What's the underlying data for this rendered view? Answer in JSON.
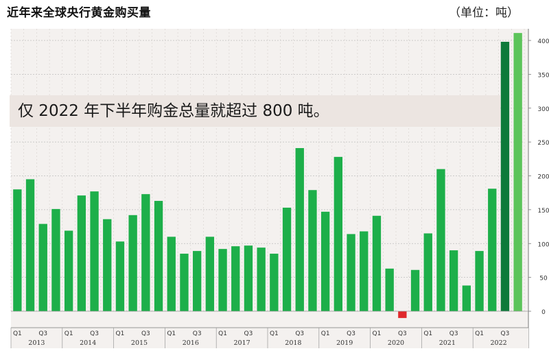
{
  "chart_data": {
    "type": "bar",
    "title": "近年来全球央行黄金购买量",
    "unit": "（单位：吨）",
    "annotation": "仅 2022 年下半年购金总量就超过 800 吨。",
    "categories": [
      "2013 Q1",
      "2013 Q2",
      "2013 Q3",
      "2013 Q4",
      "2014 Q1",
      "2014 Q2",
      "2014 Q3",
      "2014 Q4",
      "2015 Q1",
      "2015 Q2",
      "2015 Q3",
      "2015 Q4",
      "2016 Q1",
      "2016 Q2",
      "2016 Q3",
      "2016 Q4",
      "2017 Q1",
      "2017 Q2",
      "2017 Q3",
      "2017 Q4",
      "2018 Q1",
      "2018 Q2",
      "2018 Q3",
      "2018 Q4",
      "2019 Q1",
      "2019 Q2",
      "2019 Q3",
      "2019 Q4",
      "2020 Q1",
      "2020 Q2",
      "2020 Q3",
      "2020 Q4",
      "2021 Q1",
      "2021 Q2",
      "2021 Q3",
      "2021 Q4",
      "2022 Q1",
      "2022 Q2",
      "2022 Q3",
      "2022 Q4"
    ],
    "values": [
      180,
      195,
      129,
      151,
      119,
      171,
      177,
      136,
      103,
      142,
      173,
      163,
      110,
      85,
      89,
      110,
      92,
      96,
      97,
      94,
      85,
      153,
      241,
      179,
      147,
      228,
      114,
      118,
      141,
      63,
      -10,
      61,
      115,
      210,
      90,
      38,
      89,
      181,
      398,
      411
    ],
    "bar_colors": {
      "positive": "#1daf4a",
      "negative": "#e0282c",
      "highlight_q3": "#0e7a3a",
      "highlight_q4": "#5cc45a"
    },
    "ylim": [
      -10,
      415
    ],
    "yticks": [
      0,
      50,
      100,
      150,
      200,
      250,
      300,
      350,
      400
    ],
    "quarter_tick_labels": [
      "Q1",
      "Q3"
    ],
    "years": [
      "2013",
      "2014",
      "2015",
      "2016",
      "2017",
      "2018",
      "2019",
      "2020",
      "2021",
      "2022"
    ],
    "grid": true
  }
}
